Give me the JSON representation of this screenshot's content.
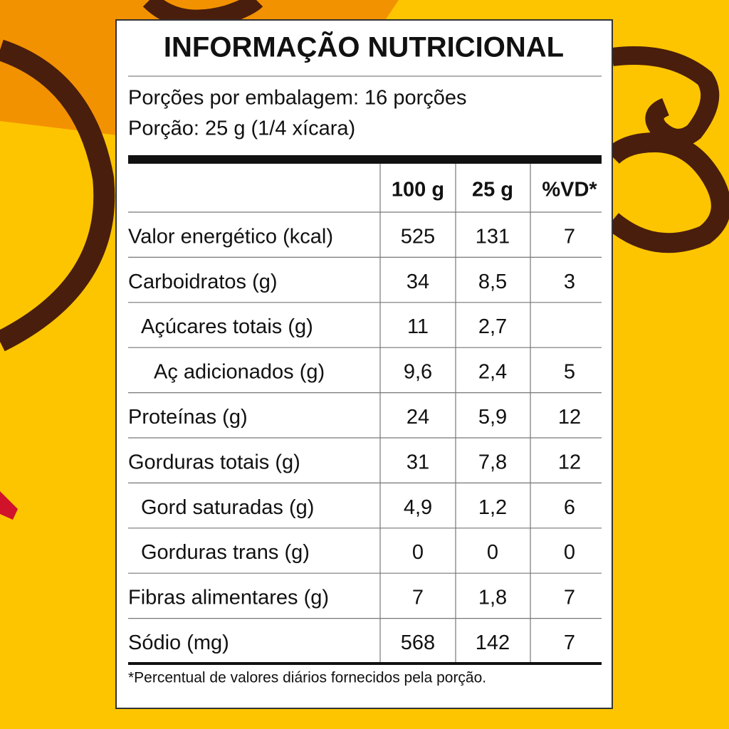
{
  "label": {
    "title": "INFORMAÇÃO NUTRICIONAL",
    "servings_per_package": "Porções por embalagem: 16 porções",
    "serving_size": "Porção: 25 g (1/4 xícara)",
    "table": {
      "header": [
        "100 g",
        "25 g",
        "%VD*"
      ],
      "rows": [
        [
          "Valor energético (kcal)",
          "525",
          "131",
          "7"
        ],
        [
          "Carboidratos (g)",
          "34",
          "8,5",
          "3"
        ],
        [
          "Açúcares totais (g)",
          "11",
          "2,7",
          null
        ],
        [
          "Aç adicionados (g)",
          "9,6",
          "2,4",
          "5"
        ],
        [
          "Proteínas (g)",
          "24",
          "5,9",
          "12"
        ],
        [
          "Gorduras totais (g)",
          "31",
          "7,8",
          "12"
        ],
        [
          "Gord saturadas (g)",
          "4,9",
          "1,2",
          "6"
        ],
        [
          "Gorduras trans (g)",
          "0",
          "0",
          "0"
        ],
        [
          "Fibras alimentares (g)",
          "7",
          "1,8",
          "7"
        ],
        [
          "Sódio (mg)",
          "568",
          "142",
          "7"
        ]
      ]
    },
    "footnote": "*Percentual de valores diários fornecidos pela porção."
  }
}
